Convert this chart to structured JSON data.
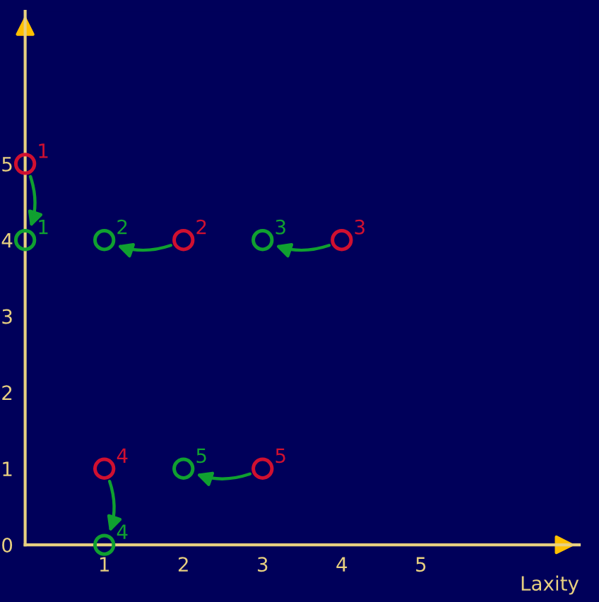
{
  "chart_data": {
    "type": "scatter",
    "xlabel": "Laxity",
    "xlim": [
      0,
      7
    ],
    "ylim": [
      0,
      7
    ],
    "xticks": [
      1,
      2,
      3,
      4,
      5
    ],
    "yticks": [
      0,
      1,
      2,
      3,
      4,
      5
    ],
    "marker": "circle",
    "grid": false,
    "legend": false,
    "series": [
      {
        "color": "#d01030",
        "x": [
          0,
          2,
          4,
          1,
          3
        ],
        "values": [
          5,
          4,
          4,
          1,
          1
        ]
      },
      {
        "color": "#10a030",
        "x": [
          0,
          1,
          3,
          1,
          2
        ],
        "values": [
          4,
          4,
          4,
          0,
          1
        ]
      }
    ],
    "annotations": [
      {
        "text": "1",
        "x": 0,
        "y": 5
      },
      {
        "text": "2",
        "x": 2,
        "y": 4
      },
      {
        "text": "3",
        "x": 4,
        "y": 4
      },
      {
        "text": "4",
        "x": 1,
        "y": 1
      },
      {
        "text": "5",
        "x": 3,
        "y": 1
      },
      {
        "text": "1",
        "x": 0,
        "y": 4
      },
      {
        "text": "2",
        "x": 1,
        "y": 4
      },
      {
        "text": "3",
        "x": 3,
        "y": 4
      },
      {
        "text": "4",
        "x": 1,
        "y": 0
      },
      {
        "text": "5",
        "x": 2,
        "y": 1
      }
    ]
  }
}
